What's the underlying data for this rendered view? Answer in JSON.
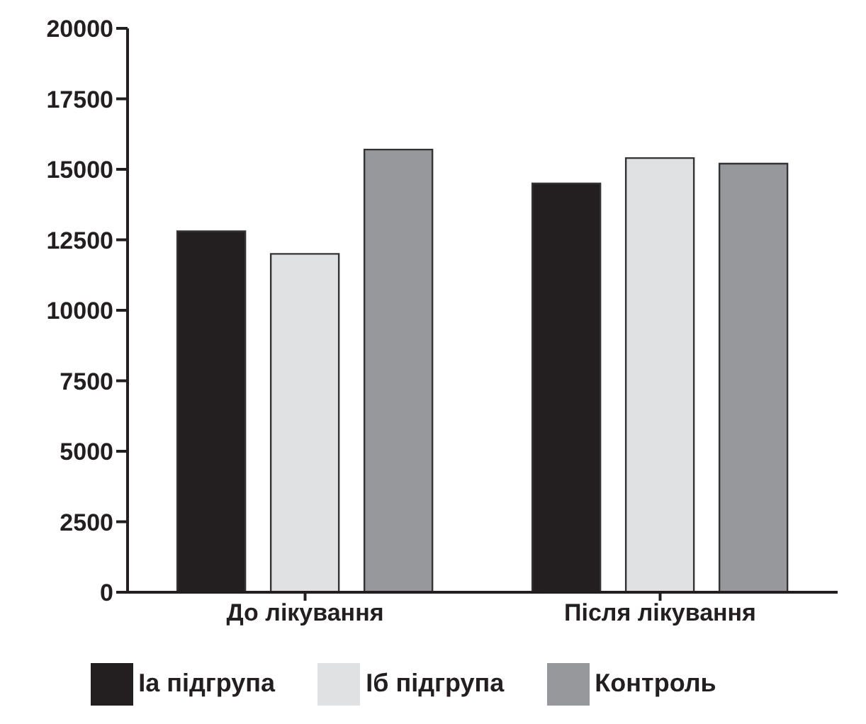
{
  "chart_data": {
    "type": "bar",
    "categories": [
      "До лікування",
      "Після лікування"
    ],
    "series": [
      {
        "name": "Iа підгрупа",
        "color": "#231f20",
        "values": [
          12800,
          14500
        ]
      },
      {
        "name": "Iб підгрупа",
        "color": "#e0e1e3",
        "values": [
          12000,
          15400
        ]
      },
      {
        "name": "Контроль",
        "color": "#97989b",
        "values": [
          15700,
          15200
        ]
      }
    ],
    "ylim": [
      0,
      20000
    ],
    "yticks": [
      0,
      2500,
      5000,
      7500,
      10000,
      12500,
      15000,
      17500,
      20000
    ],
    "grid": false,
    "legend": "bottom"
  }
}
